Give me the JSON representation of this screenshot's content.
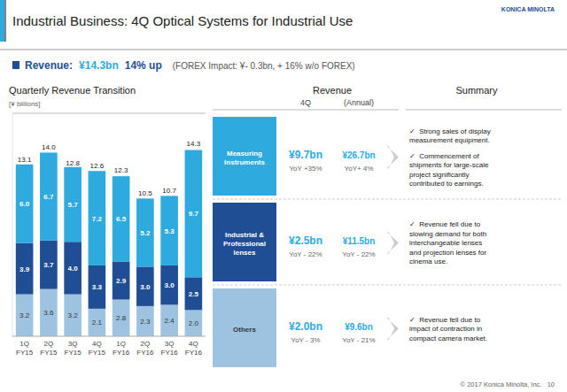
{
  "title": "Industrial Business: 4Q Optical Systems for Industrial Use",
  "logo": "KONICA MINOLTA",
  "stripe_colors": [
    "#2eaadf",
    "#808080"
  ],
  "headline": [
    {
      "text": "Revenue:",
      "color": "#1f4e94"
    },
    {
      "text": "¥14.3bn",
      "color": "#2eaadf"
    },
    {
      "text": "14% up",
      "color": "#1f4e94"
    },
    {
      "text": "(FOREX Impact: ¥- 0.3bn, + 16% w/o FOREX)",
      "color": "#555555"
    }
  ],
  "chart_data": {
    "type": "bar",
    "stacked": true,
    "title": "Quarterly Revenue Transition",
    "ylabel": "[¥ billions]",
    "categories": [
      "1Q\nFY15",
      "2Q\nFY15",
      "3Q\nFY15",
      "4Q\nFY15",
      "1Q\nFY16",
      "2Q\nFY16",
      "3Q\nFY16",
      "4Q\nFY16"
    ],
    "series": [
      {
        "color": "#9dc3e0",
        "values": [
          3.2,
          3.6,
          3.2,
          2.1,
          2.8,
          2.3,
          2.4,
          2.0
        ],
        "value_labels": [
          "3.2",
          "3.6",
          "3.2",
          "2.1",
          "2.8",
          "2.3",
          "2.4",
          "2.0"
        ]
      },
      {
        "color": "#1f4e94",
        "values": [
          3.9,
          3.7,
          4.0,
          3.3,
          2.9,
          3.0,
          3.0,
          2.5
        ],
        "value_labels": [
          "3.9",
          "3.7",
          "4.0",
          "3.3",
          "2.9",
          "3.0",
          "3.0",
          "2.5"
        ]
      },
      {
        "color": "#2eaadf",
        "values": [
          6.0,
          6.7,
          5.7,
          7.2,
          6.5,
          5.2,
          5.3,
          9.7
        ],
        "value_labels": [
          "6.0",
          "6.7",
          "5.7",
          "7.2",
          "6.5",
          "5.2",
          "5.3",
          "9.7"
        ]
      }
    ],
    "totals": [
      13.1,
      14.0,
      12.8,
      12.6,
      12.3,
      10.5,
      10.7,
      14.3
    ],
    "total_labels": [
      "13.1",
      "14.0",
      "12.8",
      "12.6",
      "12.3",
      "10.5",
      "10.7",
      "14.3"
    ],
    "ylim": [
      0,
      17
    ],
    "grid": false,
    "data_labels": true,
    "tick_labels": "x"
  },
  "panel": {
    "revenue_header": "Revenue",
    "period_headers": [
      "4Q",
      "(Annual)"
    ],
    "summary_header": "Summary",
    "products": [
      {
        "label": "Measuring\nInstruments",
        "box_color": "#2eaadf",
        "text_color": "#ffffff",
        "val_4q": "¥9.7bn",
        "yoy_4q": "YoY +35%",
        "val_annual": "¥26.7bn",
        "yoy_annual": "YoY+ 4%",
        "summaries": [
          "✓  Strong sales of display\nmeasurement equipment.",
          "✓  Commencement of\nshipments for large-scale\nproject significantly\ncontributed to earnings."
        ]
      },
      {
        "label": "Industrial &\nProfessional\nlenses",
        "box_color": "#1f4e94",
        "text_color": "#ffffff",
        "val_4q": "¥2.5bn",
        "yoy_4q": "YoY - 22%",
        "val_annual": "¥11.5bn",
        "yoy_annual": "YoY - 22%",
        "summaries": [
          "✓  Revenue fell due to\nslowing demand for both\ninterchangeable lenses\nand projection lenses for\ncinema use."
        ]
      },
      {
        "label": "Others",
        "box_color": "#9dc3e0",
        "text_color": "#333333",
        "val_4q": "¥2.0bn",
        "yoy_4q": "YoY - 3%",
        "val_annual": "¥9.6bn",
        "yoy_annual": "YoY - 21%",
        "summaries": [
          "✓  Revenue fell due to\nimpact of contraction in\ncompact camera market."
        ]
      }
    ]
  },
  "footer": "© 2017 Konica Minolta, Inc.   10"
}
